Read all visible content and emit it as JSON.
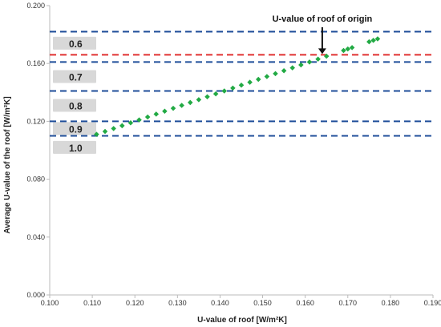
{
  "chart_data": {
    "type": "scatter",
    "title": "",
    "xlabel": "U-value of roof [W/m²K]",
    "ylabel": "Average U-value of the roof [W/m²K]",
    "xlim": [
      0.1,
      0.19
    ],
    "ylim": [
      0.0,
      0.2
    ],
    "xticks": [
      "0.100",
      "0.110",
      "0.120",
      "0.130",
      "0.140",
      "0.150",
      "0.160",
      "0.170",
      "0.180",
      "0.190"
    ],
    "yticks": [
      "0.000",
      "0.040",
      "0.080",
      "0.120",
      "0.160",
      "0.200"
    ],
    "grid": "none",
    "series": [
      {
        "color": "#22aa44",
        "x": [
          0.111,
          0.113,
          0.115,
          0.117,
          0.119,
          0.121,
          0.123,
          0.125,
          0.127,
          0.129,
          0.131,
          0.133,
          0.135,
          0.137,
          0.139,
          0.141,
          0.143,
          0.145,
          0.147,
          0.149,
          0.151,
          0.153,
          0.155,
          0.157,
          0.159,
          0.161,
          0.163,
          0.165,
          0.169,
          0.17,
          0.171,
          0.175,
          0.176,
          0.177
        ],
        "y": [
          0.111,
          0.113,
          0.115,
          0.117,
          0.119,
          0.121,
          0.123,
          0.125,
          0.127,
          0.129,
          0.131,
          0.133,
          0.135,
          0.137,
          0.139,
          0.141,
          0.143,
          0.145,
          0.147,
          0.149,
          0.151,
          0.153,
          0.155,
          0.157,
          0.159,
          0.161,
          0.163,
          0.165,
          0.169,
          0.17,
          0.171,
          0.175,
          0.176,
          0.177
        ]
      }
    ],
    "reference_lines": [
      {
        "y": 0.182,
        "color": "#1f4e9a"
      },
      {
        "y": 0.166,
        "color": "#e03030"
      },
      {
        "y": 0.161,
        "color": "#1f4e9a"
      },
      {
        "y": 0.141,
        "color": "#1f4e9a"
      },
      {
        "y": 0.12,
        "color": "#1f4e9a"
      },
      {
        "y": 0.11,
        "color": "#1f4e9a"
      }
    ],
    "band_labels": [
      {
        "text": "0.6",
        "y": 0.174
      },
      {
        "text": "0.7",
        "y": 0.151
      },
      {
        "text": "0.8",
        "y": 0.131
      },
      {
        "text": "0.9",
        "y": 0.115
      },
      {
        "text": "1.0",
        "y": 0.102
      }
    ],
    "annotation": {
      "text": "U-value of roof of origin",
      "x": 0.164,
      "y": 0.166
    }
  }
}
